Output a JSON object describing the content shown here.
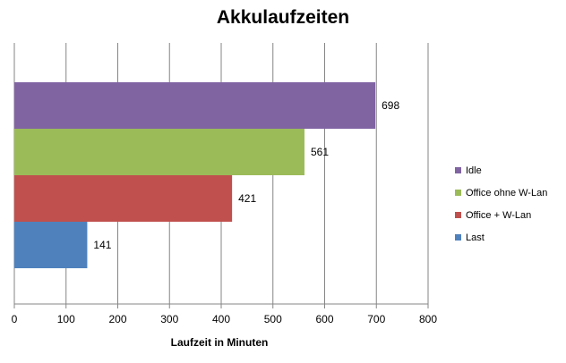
{
  "chart_data": {
    "type": "bar",
    "orientation": "horizontal",
    "title": "Akkulaufzeiten",
    "xlabel": "Laufzeit in Minuten",
    "ylabel": "",
    "xlim": [
      0,
      800
    ],
    "x_ticks": [
      0,
      100,
      200,
      300,
      400,
      500,
      600,
      700,
      800
    ],
    "grid": "vertical",
    "legend_position": "right",
    "series": [
      {
        "name": "Idle",
        "value": 698,
        "color": "#8064a2"
      },
      {
        "name": "Office ohne W-Lan",
        "value": 561,
        "color": "#9bbb59"
      },
      {
        "name": "Office + W-Lan",
        "value": 421,
        "color": "#c0504d"
      },
      {
        "name": "Last",
        "value": 141,
        "color": "#4f81bd"
      }
    ]
  }
}
